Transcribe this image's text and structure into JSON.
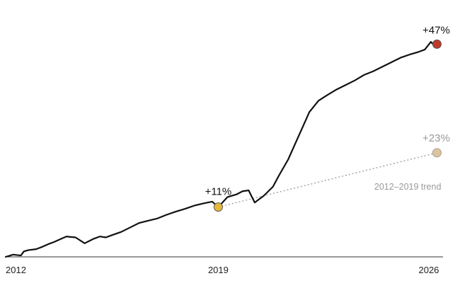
{
  "chart_data": {
    "type": "line",
    "title": "",
    "xlabel": "",
    "ylabel": "",
    "x_ticks": [
      "2012",
      "2019",
      "2026"
    ],
    "xlim": [
      2012,
      2026.4
    ],
    "ylim": [
      0,
      48
    ],
    "grid": false,
    "colors": {
      "main_line": "#111111",
      "trend_line": "#aaaaaa",
      "start_dot": "#e8b83a",
      "end_dot": "#c0392b",
      "trend_dot": "#dcc4a0",
      "trend_text": "#999999",
      "axis": "#333333"
    },
    "series": [
      {
        "x": [
          2012.0,
          2012.25,
          2012.5,
          2012.6,
          2012.75,
          2013.0,
          2013.2,
          2013.4,
          2013.6,
          2013.8,
          2014.0,
          2014.3,
          2014.6,
          2014.9,
          2015.1,
          2015.3,
          2015.5,
          2015.8,
          2016.1,
          2016.4,
          2016.7,
          2017.0,
          2017.3,
          2017.6,
          2017.9,
          2018.2,
          2018.5,
          2018.8,
          2019.0,
          2019.3,
          2019.6,
          2019.8,
          2020.0,
          2020.2,
          2020.3,
          2020.5,
          2020.8,
          2021.0,
          2021.3,
          2021.6,
          2021.8,
          2022.0,
          2022.3,
          2022.6,
          2022.9,
          2023.2,
          2023.5,
          2023.8,
          2024.1,
          2024.4,
          2024.7,
          2025.0,
          2025.3,
          2025.6,
          2025.8,
          2026.0,
          2026.1,
          2026.2
        ],
        "y": [
          0.0,
          0.5,
          0.3,
          1.2,
          1.5,
          1.7,
          2.2,
          2.8,
          3.3,
          3.9,
          4.5,
          4.3,
          3.0,
          4.0,
          4.5,
          4.3,
          4.8,
          5.5,
          6.5,
          7.5,
          8.0,
          8.5,
          9.3,
          10.0,
          10.6,
          11.3,
          11.8,
          12.2,
          11.0,
          13.2,
          13.8,
          14.5,
          14.7,
          12.0,
          12.5,
          13.5,
          15.5,
          18.0,
          21.5,
          26.0,
          29.0,
          32.0,
          34.5,
          35.8,
          37.0,
          38.0,
          39.0,
          40.2,
          41.0,
          42.0,
          43.0,
          44.0,
          44.7,
          45.3,
          45.8,
          47.5,
          46.8,
          47.0
        ]
      },
      {
        "name": "2012–2019 trend",
        "x": [
          2019.0,
          2026.2
        ],
        "y": [
          11.0,
          23.0
        ]
      }
    ],
    "annotations": [
      {
        "text": "+11%",
        "x": 2019.0,
        "y": 11.0
      },
      {
        "text": "+47%",
        "x": 2026.2,
        "y": 47.0
      },
      {
        "text": "+23%",
        "x": 2026.2,
        "y": 23.0
      },
      {
        "text": "2012–2019 trend",
        "x": 2026.2,
        "y": 23.0
      }
    ]
  }
}
